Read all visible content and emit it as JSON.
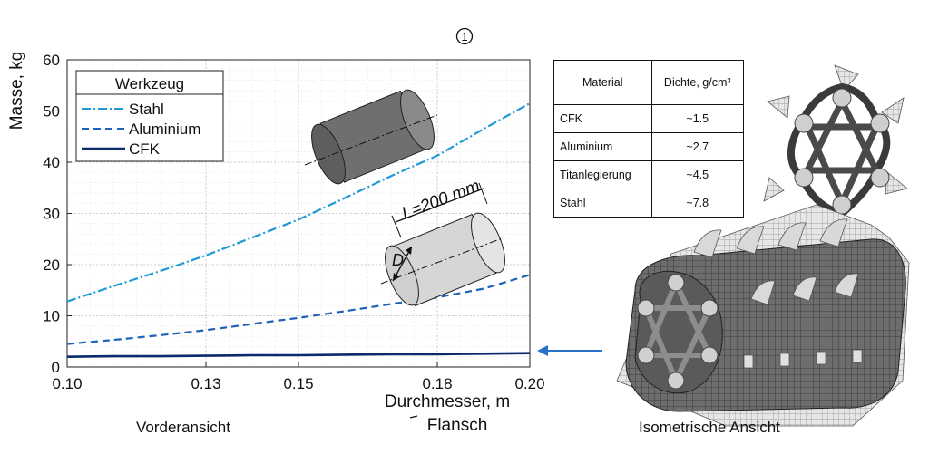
{
  "header": {
    "circle_label": "1"
  },
  "chart_data": {
    "type": "line",
    "xlabel": "Durchmesser, m",
    "xlabel_sub": "Flansch",
    "ylabel": "Masse, kg",
    "xlim": [
      0.1,
      0.2
    ],
    "ylim": [
      0,
      60
    ],
    "xticks": [
      0.1,
      0.13,
      0.15,
      0.18,
      0.2
    ],
    "xtick_labels": [
      "0.10",
      "0.13",
      "0.15",
      "0.18",
      "0.20"
    ],
    "yticks": [
      0,
      10,
      20,
      30,
      40,
      50,
      60
    ],
    "ytick_labels": [
      "0",
      "10",
      "20",
      "30",
      "40",
      "50",
      "60"
    ],
    "grid": true,
    "legend_title": "Werkzeug",
    "legend_position": "top-left",
    "series": [
      {
        "name": "Stahl",
        "color": "#1f9ad6",
        "dash": "dashdot",
        "x": [
          0.1,
          0.11,
          0.12,
          0.13,
          0.14,
          0.15,
          0.16,
          0.17,
          0.18,
          0.19,
          0.2
        ],
        "y": [
          12.8,
          15.8,
          18.7,
          21.8,
          25.3,
          28.8,
          33.0,
          37.3,
          41.3,
          46.5,
          51.5
        ]
      },
      {
        "name": "Aluminium",
        "color": "#1e63b8",
        "dash": "dashed",
        "x": [
          0.1,
          0.11,
          0.12,
          0.13,
          0.14,
          0.15,
          0.16,
          0.17,
          0.18,
          0.19,
          0.2
        ],
        "y": [
          4.5,
          5.3,
          6.2,
          7.2,
          8.4,
          9.6,
          10.9,
          12.3,
          13.6,
          15.3,
          18.0
        ]
      },
      {
        "name": "CFK",
        "color": "#0b2a6b",
        "dash": "solid",
        "x": [
          0.1,
          0.11,
          0.12,
          0.13,
          0.14,
          0.15,
          0.16,
          0.17,
          0.18,
          0.19,
          0.2
        ],
        "y": [
          2.0,
          2.1,
          2.1,
          2.2,
          2.3,
          2.3,
          2.4,
          2.5,
          2.5,
          2.6,
          2.7
        ]
      }
    ],
    "annotations": {
      "length_label": "L=200 mm",
      "diameter_label": "D"
    }
  },
  "material_table": {
    "headers": [
      "Material",
      "Dichte, g/cm³"
    ],
    "rows": [
      [
        "CFK",
        "~1.5"
      ],
      [
        "Aluminium",
        "~2.7"
      ],
      [
        "Titanlegierung",
        "~4.5"
      ],
      [
        "Stahl",
        "~7.8"
      ]
    ]
  },
  "captions": {
    "front": "Vorderansicht",
    "iso": "Isometrische Ansicht"
  }
}
